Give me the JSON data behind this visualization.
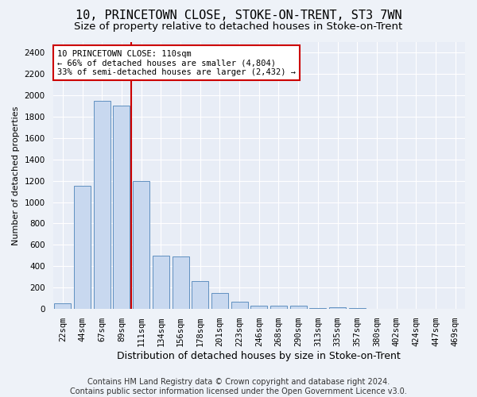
{
  "title": "10, PRINCETOWN CLOSE, STOKE-ON-TRENT, ST3 7WN",
  "subtitle": "Size of property relative to detached houses in Stoke-on-Trent",
  "xlabel": "Distribution of detached houses by size in Stoke-on-Trent",
  "ylabel": "Number of detached properties",
  "bar_labels": [
    "22sqm",
    "44sqm",
    "67sqm",
    "89sqm",
    "111sqm",
    "134sqm",
    "156sqm",
    "178sqm",
    "201sqm",
    "223sqm",
    "246sqm",
    "268sqm",
    "290sqm",
    "313sqm",
    "335sqm",
    "357sqm",
    "380sqm",
    "402sqm",
    "424sqm",
    "447sqm",
    "469sqm"
  ],
  "bar_values": [
    50,
    1150,
    1950,
    1900,
    1200,
    500,
    490,
    260,
    150,
    70,
    35,
    35,
    35,
    10,
    15,
    10,
    5,
    5,
    3,
    2,
    2
  ],
  "bar_color": "#c8d8ef",
  "bar_edge_color": "#6090c0",
  "property_line_color": "#cc0000",
  "property_line_index": 3.5,
  "annotation_line1": "10 PRINCETOWN CLOSE: 110sqm",
  "annotation_line2": "← 66% of detached houses are smaller (4,804)",
  "annotation_line3": "33% of semi-detached houses are larger (2,432) →",
  "annotation_box_facecolor": "#ffffff",
  "annotation_box_edgecolor": "#cc0000",
  "ylim": [
    0,
    2500
  ],
  "yticks": [
    0,
    200,
    400,
    600,
    800,
    1000,
    1200,
    1400,
    1600,
    1800,
    2000,
    2200,
    2400
  ],
  "footer_line1": "Contains HM Land Registry data © Crown copyright and database right 2024.",
  "footer_line2": "Contains public sector information licensed under the Open Government Licence v3.0.",
  "bg_color": "#eef2f8",
  "plot_bg_color": "#e8edf6",
  "grid_color": "#ffffff",
  "title_fontsize": 11,
  "subtitle_fontsize": 9.5,
  "xlabel_fontsize": 9,
  "ylabel_fontsize": 8,
  "tick_fontsize": 7.5,
  "annotation_fontsize": 7.5,
  "footer_fontsize": 7
}
